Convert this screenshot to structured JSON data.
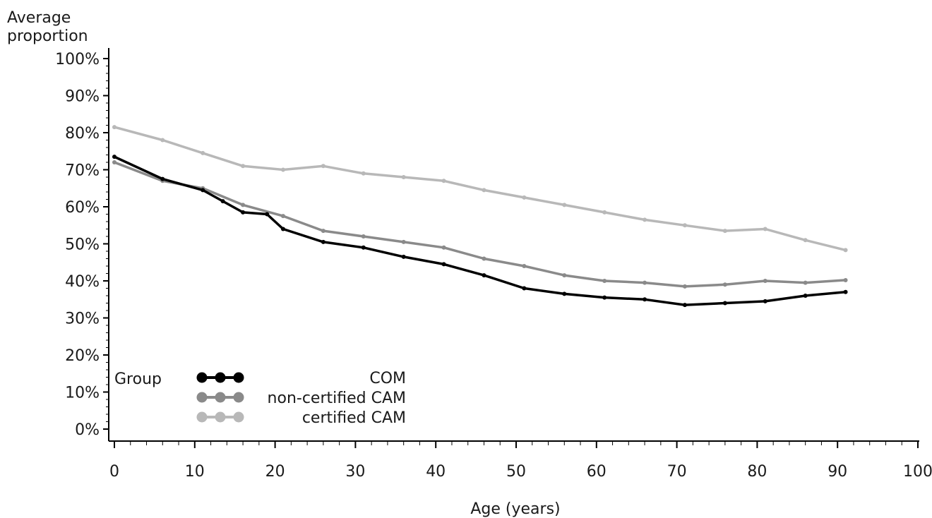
{
  "chart_data": {
    "type": "line",
    "ylabel_lines": [
      "Average",
      "proportion"
    ],
    "xlabel": "Age (years)",
    "xlim": [
      0,
      100
    ],
    "ylim": [
      0,
      100
    ],
    "x_ticks": [
      0,
      10,
      20,
      30,
      40,
      50,
      60,
      70,
      80,
      90,
      100
    ],
    "y_ticks": [
      0,
      10,
      20,
      30,
      40,
      50,
      60,
      70,
      80,
      90,
      100
    ],
    "y_tick_labels": [
      "0%",
      "10%",
      "20%",
      "30%",
      "40%",
      "50%",
      "60%",
      "70%",
      "80%",
      "90%",
      "100%"
    ],
    "grid": false,
    "legend": {
      "title": "Group",
      "position": "bottom-left"
    },
    "series": [
      {
        "name": "COM",
        "color": "#000000",
        "points": [
          [
            0,
            73.5
          ],
          [
            6,
            67.5
          ],
          [
            11,
            64.5
          ],
          [
            13.5,
            61.5
          ],
          [
            16,
            58.5
          ],
          [
            19,
            58
          ],
          [
            21,
            54
          ],
          [
            26,
            50.5
          ],
          [
            31,
            49
          ],
          [
            36,
            46.5
          ],
          [
            41,
            44.5
          ],
          [
            46,
            41.5
          ],
          [
            51,
            38
          ],
          [
            56,
            36.5
          ],
          [
            61,
            35.5
          ],
          [
            66,
            35
          ],
          [
            71,
            33.5
          ],
          [
            76,
            34
          ],
          [
            81,
            34.5
          ],
          [
            86,
            36
          ],
          [
            91,
            37
          ]
        ]
      },
      {
        "name": "non-certified CAM",
        "color": "#8a8a8a",
        "points": [
          [
            0,
            72
          ],
          [
            6,
            67
          ],
          [
            11,
            65
          ],
          [
            16,
            60.5
          ],
          [
            21,
            57.5
          ],
          [
            26,
            53.5
          ],
          [
            31,
            52
          ],
          [
            36,
            50.5
          ],
          [
            41,
            49
          ],
          [
            46,
            46
          ],
          [
            51,
            44
          ],
          [
            56,
            41.5
          ],
          [
            61,
            40
          ],
          [
            66,
            39.5
          ],
          [
            71,
            38.5
          ],
          [
            76,
            39
          ],
          [
            81,
            40
          ],
          [
            86,
            39.5
          ],
          [
            91,
            40.2
          ]
        ]
      },
      {
        "name": "certified CAM",
        "color": "#b8b8b8",
        "points": [
          [
            0,
            81.5
          ],
          [
            6,
            78
          ],
          [
            11,
            74.5
          ],
          [
            16,
            71
          ],
          [
            21,
            70
          ],
          [
            26,
            71
          ],
          [
            31,
            69
          ],
          [
            36,
            68
          ],
          [
            41,
            67
          ],
          [
            46,
            64.5
          ],
          [
            51,
            62.5
          ],
          [
            56,
            60.5
          ],
          [
            61,
            58.5
          ],
          [
            66,
            56.5
          ],
          [
            71,
            55
          ],
          [
            76,
            53.5
          ],
          [
            81,
            54
          ],
          [
            86,
            51
          ],
          [
            91,
            48.3
          ]
        ]
      }
    ]
  }
}
